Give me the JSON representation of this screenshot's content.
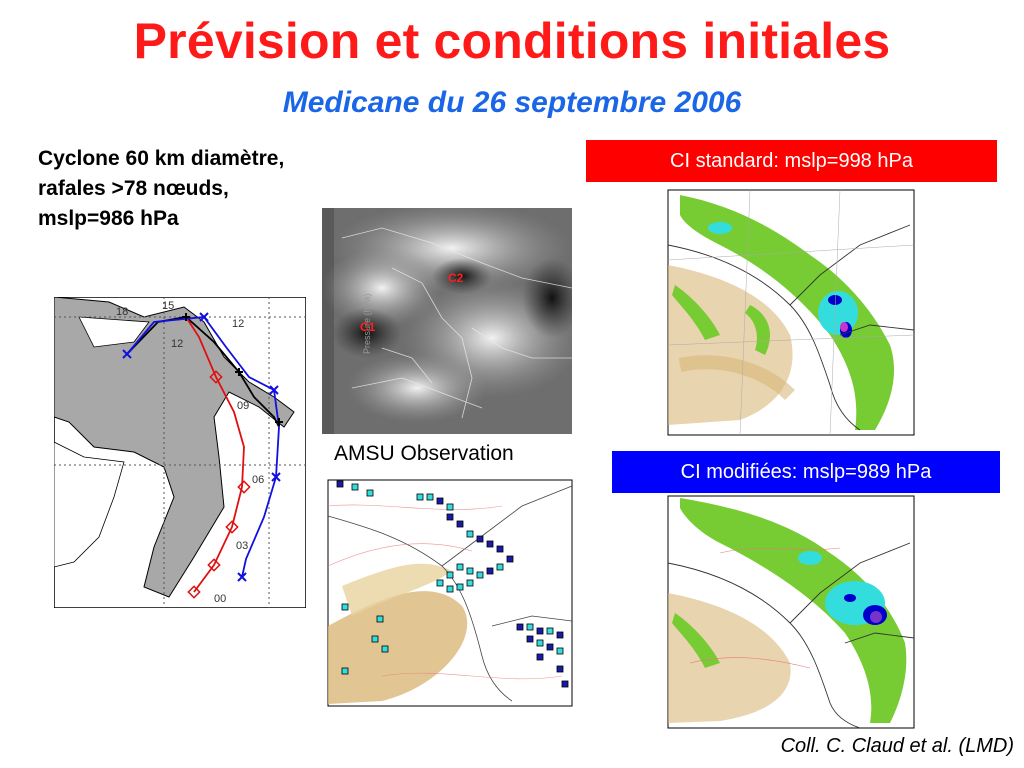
{
  "slide": {
    "title": "Prévision et conditions initiales",
    "subtitle": "Medicane du 26 septembre 2006",
    "summary_lines": [
      "Cyclone 60 km diamètre,",
      "rafales >78 nœuds,",
      "mslp=986 hPa"
    ],
    "ci_standard_label": "CI standard: mslp=998 hPa",
    "ci_modified_label": "CI modifiées: mslp=989 hPa",
    "amsu_label": "AMSU Observation",
    "credit": "Coll. C. Claud et al. (LMD)"
  },
  "track_map": {
    "hour_labels": [
      "18",
      "15",
      "12",
      "12",
      "09",
      "06",
      "03",
      "00"
    ]
  },
  "satellite": {
    "labels": [
      "C2",
      "C1"
    ],
    "axis_caption": "Pressure (hPa)"
  },
  "colors": {
    "title": "#ff1a1a",
    "subtitle": "#1a66e6",
    "ci_standard_bg": "#ff0000",
    "ci_modified_bg": "#0000ff",
    "track_red": "#e01010",
    "track_blue": "#1010e0",
    "track_black": "#000000",
    "land": "#a8a8a8",
    "precip_green": "#77cc33",
    "precip_cyan": "#33dddd",
    "precip_blue": "#0000cc",
    "dust": "#d9b878"
  }
}
